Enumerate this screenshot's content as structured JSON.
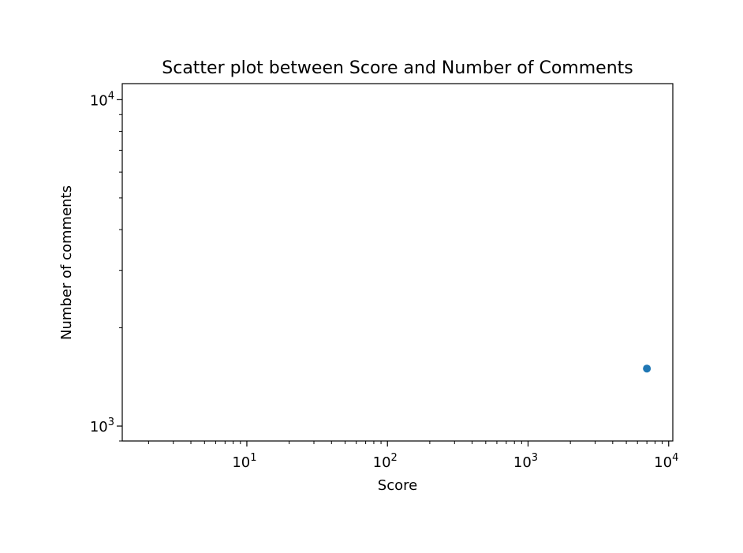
{
  "chart_data": {
    "type": "scatter",
    "title": "Scatter plot between Score and Number of Comments",
    "xlabel": "Score",
    "ylabel": "Number of comments",
    "xscale": "log",
    "yscale": "log",
    "xlim": [
      1.3,
      10700
    ],
    "ylim": [
      900,
      11200
    ],
    "x_ticks": [
      {
        "value": 10,
        "base": "10",
        "exp": "1"
      },
      {
        "value": 100,
        "base": "10",
        "exp": "2"
      },
      {
        "value": 1000,
        "base": "10",
        "exp": "3"
      },
      {
        "value": 10000,
        "base": "10",
        "exp": "4"
      }
    ],
    "y_ticks": [
      {
        "value": 1000,
        "base": "10",
        "exp": "3"
      },
      {
        "value": 10000,
        "base": "10",
        "exp": "4"
      }
    ],
    "grid": false,
    "points": [
      {
        "x": 7000,
        "y": 1500
      }
    ],
    "colors": {
      "marker": "#1f77b4"
    }
  }
}
